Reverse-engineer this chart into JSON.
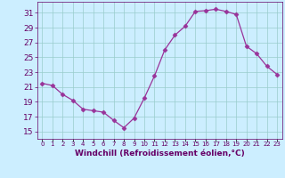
{
  "x": [
    0,
    1,
    2,
    3,
    4,
    5,
    6,
    7,
    8,
    9,
    10,
    11,
    12,
    13,
    14,
    15,
    16,
    17,
    18,
    19,
    20,
    21,
    22,
    23
  ],
  "y": [
    21.5,
    21.2,
    20.0,
    19.2,
    18.0,
    17.8,
    17.6,
    16.5,
    15.5,
    16.8,
    19.5,
    22.5,
    26.0,
    28.0,
    29.2,
    31.2,
    31.3,
    31.5,
    31.2,
    30.8,
    26.5,
    25.5,
    23.8,
    22.7
  ],
  "line_color": "#993399",
  "marker": "D",
  "marker_size": 2.5,
  "bg_color": "#cceeff",
  "grid_color": "#99cccc",
  "xlabel": "Windchill (Refroidissement éolien,°C)",
  "xlim": [
    -0.5,
    23.5
  ],
  "ylim": [
    14.0,
    32.5
  ],
  "yticks": [
    15,
    17,
    19,
    21,
    23,
    25,
    27,
    29,
    31
  ],
  "xtick_labels": [
    "0",
    "1",
    "2",
    "3",
    "4",
    "5",
    "6",
    "7",
    "8",
    "9",
    "10",
    "11",
    "12",
    "13",
    "14",
    "15",
    "16",
    "17",
    "18",
    "19",
    "20",
    "21",
    "22",
    "23"
  ],
  "axis_label_color": "#660066",
  "tick_color": "#660066",
  "font_size_xlabel": 6.5,
  "font_size_yticks": 6.5,
  "font_size_xticks": 5.0
}
